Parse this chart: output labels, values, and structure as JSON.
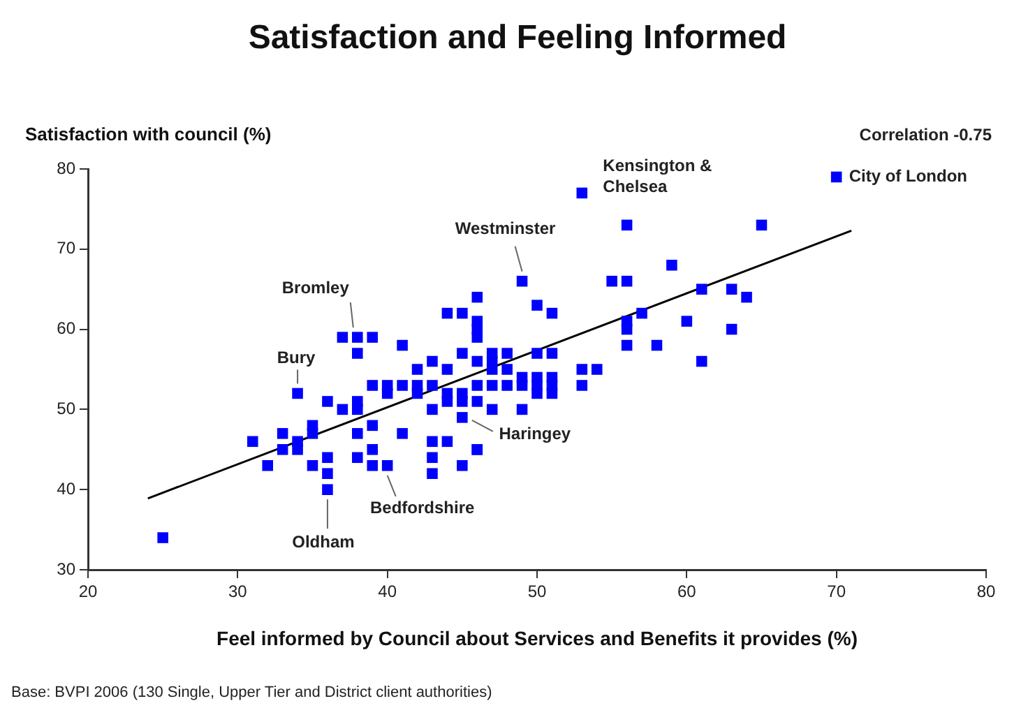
{
  "chart_data": {
    "type": "scatter",
    "title": "Satisfaction and Feeling Informed",
    "xlabel": "Feel informed by Council about Services and Benefits it provides (%)",
    "ylabel": "Satisfaction with council (%)",
    "xlim": [
      20,
      80
    ],
    "xticks": [
      20,
      30,
      40,
      50,
      60,
      70,
      80
    ],
    "ylim": [
      30,
      80
    ],
    "yticks": [
      30,
      40,
      50,
      60,
      70,
      80
    ],
    "grid": false,
    "legend": false,
    "marker": "square",
    "series": [
      {
        "color": "#0000ff",
        "x": [
          25,
          31,
          32,
          33,
          33,
          34,
          34,
          35,
          35,
          35,
          36,
          36,
          36,
          34,
          36,
          37,
          38,
          37,
          38,
          39,
          38,
          41,
          41,
          39,
          38,
          40,
          39,
          43,
          42,
          44,
          39,
          40,
          41,
          42,
          40,
          38,
          43,
          43,
          43,
          43,
          44,
          45,
          46,
          46,
          44,
          45,
          46,
          46,
          46,
          45,
          47,
          45,
          45,
          53,
          56,
          65,
          49,
          55,
          56,
          59,
          61,
          63,
          64,
          50,
          51,
          57,
          56,
          56,
          60,
          63,
          56,
          58,
          61,
          48,
          47,
          48,
          47,
          50,
          51,
          49,
          50,
          51,
          50,
          51,
          51,
          50,
          48,
          49,
          53,
          54,
          53,
          47,
          49,
          46,
          46,
          44,
          45,
          46,
          47,
          42,
          43,
          44,
          46,
          38,
          39,
          70
        ],
        "values": [
          34,
          46,
          43,
          47,
          45,
          46,
          45,
          47,
          48,
          43,
          44,
          42,
          40,
          52,
          51,
          50,
          51,
          59,
          59,
          59,
          57,
          58,
          47,
          45,
          44,
          43,
          43,
          56,
          55,
          55,
          53,
          53,
          53,
          53,
          52,
          50,
          50,
          46,
          44,
          42,
          46,
          43,
          45,
          64,
          62,
          62,
          61,
          60,
          59,
          57,
          57,
          51,
          49,
          77,
          73,
          73,
          66,
          66,
          66,
          68,
          65,
          65,
          64,
          63,
          62,
          62,
          61,
          60,
          61,
          60,
          58,
          58,
          56,
          57,
          56,
          55,
          55,
          57,
          57,
          54,
          54,
          54,
          53,
          53,
          52,
          52,
          53,
          53,
          55,
          55,
          53,
          50,
          50,
          51,
          45,
          52,
          52,
          53,
          53,
          52,
          53,
          51,
          56,
          47,
          48,
          79
        ]
      },
      {
        "type": "line",
        "color": "#000000",
        "marker": "none",
        "line_style": "solid",
        "x": [
          24,
          71
        ],
        "values": [
          38.9,
          72.3
        ]
      }
    ],
    "annotations": [
      {
        "text": "Kensington & Chelsea",
        "x": 53,
        "y": 77
      },
      {
        "text": "Westminster",
        "x": 49,
        "y": 66
      },
      {
        "text": "Bromley",
        "x": 38,
        "y": 59
      },
      {
        "text": "Bury",
        "x": 34,
        "y": 52
      },
      {
        "text": "Oldham",
        "x": 36,
        "y": 40
      },
      {
        "text": "Bedfordshire",
        "x": 40,
        "y": 43
      },
      {
        "text": "Haringey",
        "x": 45,
        "y": 49
      },
      {
        "text": "City of London",
        "x": 70,
        "y": 79
      },
      "Correlation -0.75",
      "Base: BVPI 2006 (130 Single, Upper Tier and District client authorities)"
    ]
  }
}
